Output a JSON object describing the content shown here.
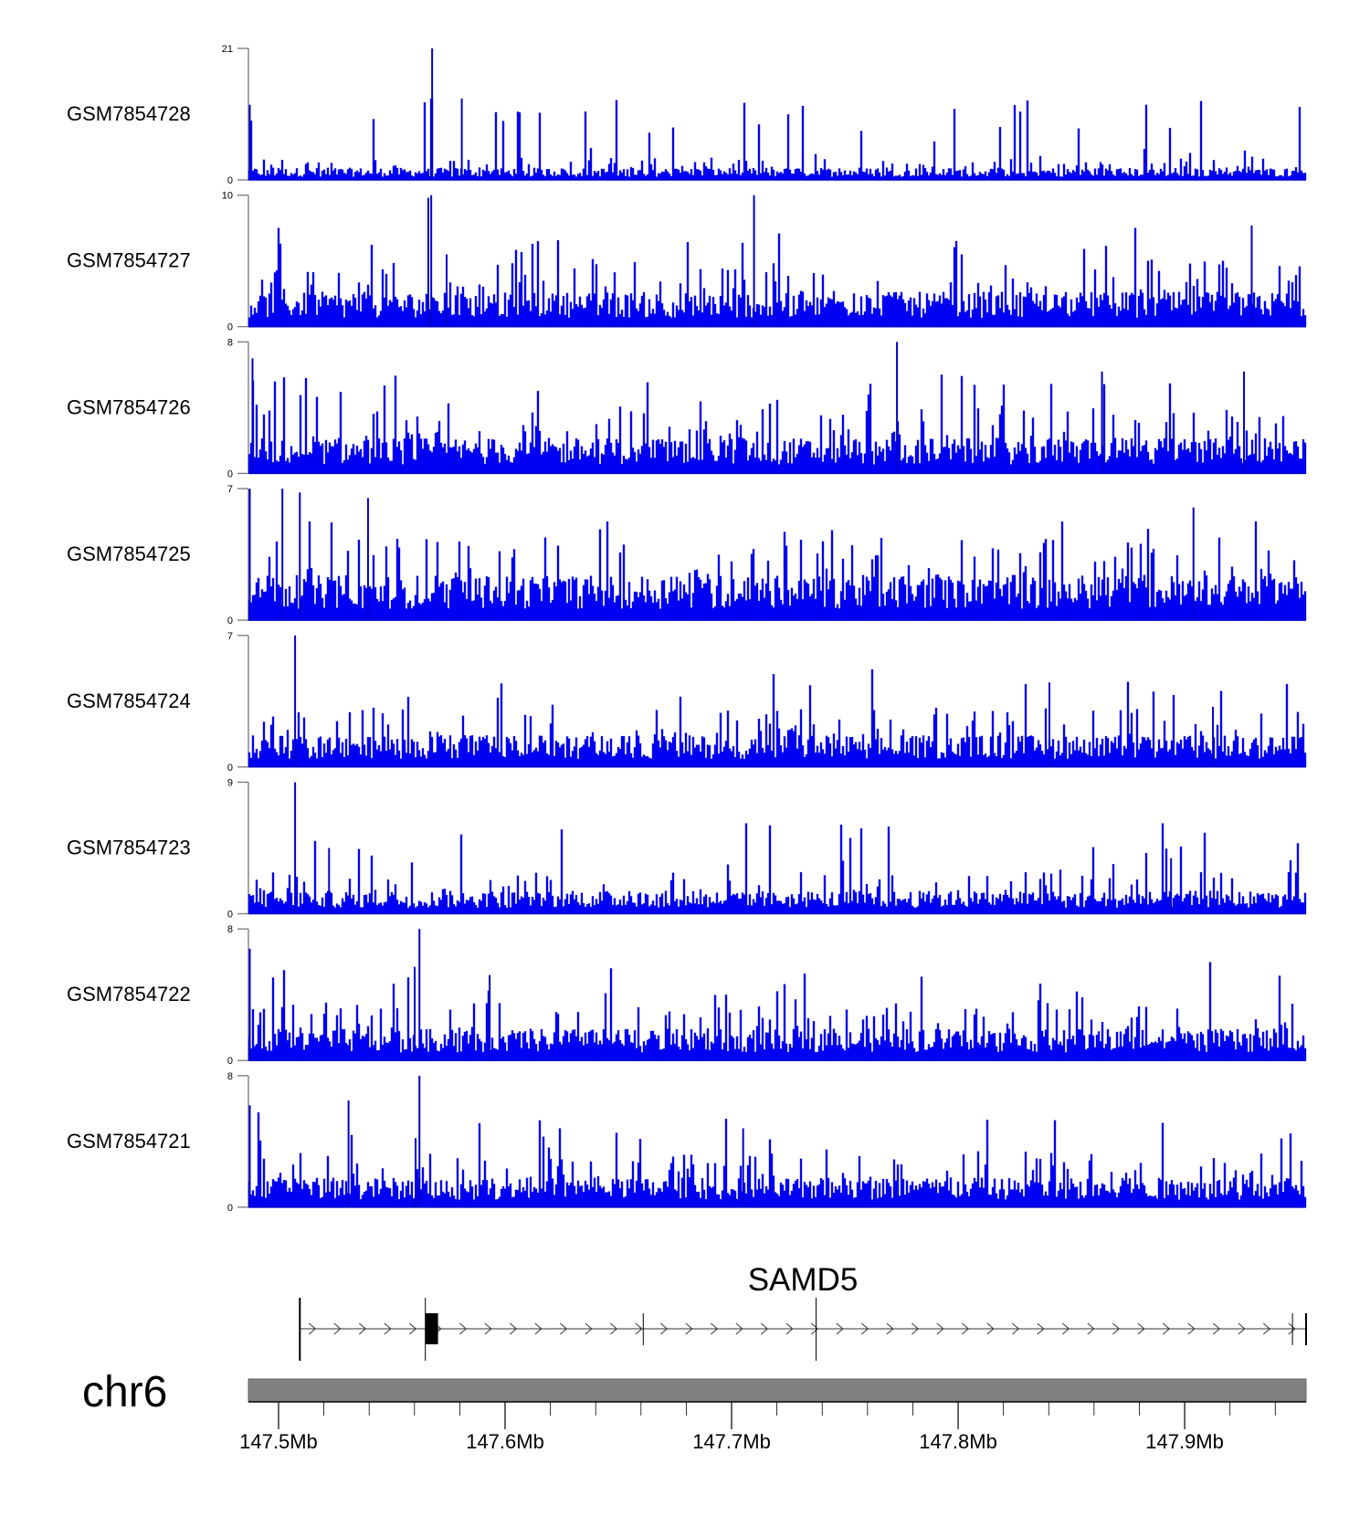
{
  "chart_data": {
    "type": "bar",
    "title": "",
    "chromosome": "chr6",
    "xlim_mb": [
      147.4867,
      147.9536
    ],
    "x_ticks": [
      "147.5Mb",
      "147.6Mb",
      "147.7Mb",
      "147.8Mb",
      "147.9Mb"
    ],
    "x_tick_values_mb": [
      147.5,
      147.6,
      147.7,
      147.8,
      147.9
    ],
    "minor_tick_step_mb": 0.02,
    "bar_color": "#0000cc",
    "bar_fill_color": "#0000ff",
    "tracks": [
      {
        "name": "GSM7854728",
        "ylim": [
          0,
          21
        ],
        "y_ticks": [
          "0",
          "21"
        ],
        "baseline_level": 1.6,
        "peaks": [
          {
            "x_mb": 147.5678,
            "value": 21
          },
          {
            "x_mb": 147.5673,
            "value": 13
          },
          {
            "x_mb": 147.5809,
            "value": 13
          },
          {
            "x_mb": 147.4873,
            "value": 12
          }
        ]
      },
      {
        "name": "GSM7854727",
        "ylim": [
          0,
          10
        ],
        "y_ticks": [
          "0",
          "10"
        ],
        "baseline_level": 2.2,
        "peaks": [
          {
            "x_mb": 147.5661,
            "value": 9.8
          },
          {
            "x_mb": 147.5674,
            "value": 10
          },
          {
            "x_mb": 147.7099,
            "value": 10
          },
          {
            "x_mb": 147.9296,
            "value": 7.7
          },
          {
            "x_mb": 147.5742,
            "value": 5.5
          }
        ]
      },
      {
        "name": "GSM7854726",
        "ylim": [
          0,
          8
        ],
        "y_ticks": [
          "0",
          "8"
        ],
        "baseline_level": 1.8,
        "peaks": [
          {
            "x_mb": 147.773,
            "value": 8
          },
          {
            "x_mb": 147.8635,
            "value": 6.2
          },
          {
            "x_mb": 147.4885,
            "value": 7
          },
          {
            "x_mb": 147.9262,
            "value": 6.2
          }
        ]
      },
      {
        "name": "GSM7854725",
        "ylim": [
          0,
          7
        ],
        "y_ticks": [
          "0",
          "7"
        ],
        "baseline_level": 2.0,
        "peaks": [
          {
            "x_mb": 147.4873,
            "value": 7
          },
          {
            "x_mb": 147.5017,
            "value": 7
          },
          {
            "x_mb": 147.5094,
            "value": 6.8
          },
          {
            "x_mb": 147.5395,
            "value": 6.5
          },
          {
            "x_mb": 147.9039,
            "value": 6
          }
        ]
      },
      {
        "name": "GSM7854724",
        "ylim": [
          0,
          7
        ],
        "y_ticks": [
          "0",
          "7"
        ],
        "baseline_level": 1.4,
        "peaks": [
          {
            "x_mb": 147.5073,
            "value": 7
          },
          {
            "x_mb": 147.8403,
            "value": 4.5
          },
          {
            "x_mb": 147.9125,
            "value": 3.2
          }
        ]
      },
      {
        "name": "GSM7854723",
        "ylim": [
          0,
          9
        ],
        "y_ticks": [
          "0",
          "9"
        ],
        "baseline_level": 1.3,
        "peaks": [
          {
            "x_mb": 147.5073,
            "value": 9
          },
          {
            "x_mb": 147.5223,
            "value": 4.5
          },
          {
            "x_mb": 147.894,
            "value": 3.8
          }
        ]
      },
      {
        "name": "GSM7854722",
        "ylim": [
          0,
          8
        ],
        "y_ticks": [
          "0",
          "8"
        ],
        "baseline_level": 1.6,
        "peaks": [
          {
            "x_mb": 147.5622,
            "value": 8
          },
          {
            "x_mb": 147.4873,
            "value": 6.8
          },
          {
            "x_mb": 147.5601,
            "value": 5.7
          },
          {
            "x_mb": 147.5932,
            "value": 5.2
          }
        ]
      },
      {
        "name": "GSM7854721",
        "ylim": [
          0,
          8
        ],
        "y_ticks": [
          "0",
          "8"
        ],
        "baseline_level": 1.5,
        "peaks": [
          {
            "x_mb": 147.5622,
            "value": 8
          },
          {
            "x_mb": 147.5605,
            "value": 4.2
          },
          {
            "x_mb": 147.4873,
            "value": 6.2
          },
          {
            "x_mb": 147.5309,
            "value": 6.5
          },
          {
            "x_mb": 147.7051,
            "value": 4.8
          }
        ]
      }
    ],
    "gene": {
      "name": "SAMD5",
      "strand": "+",
      "start_mb": 147.5094,
      "end_mb": 147.9536,
      "exon_mb": [
        147.5648,
        147.5704
      ],
      "transcript_marks_mb": [
        147.5094,
        147.5648,
        147.661,
        147.7373,
        147.9476,
        147.9536
      ]
    }
  }
}
